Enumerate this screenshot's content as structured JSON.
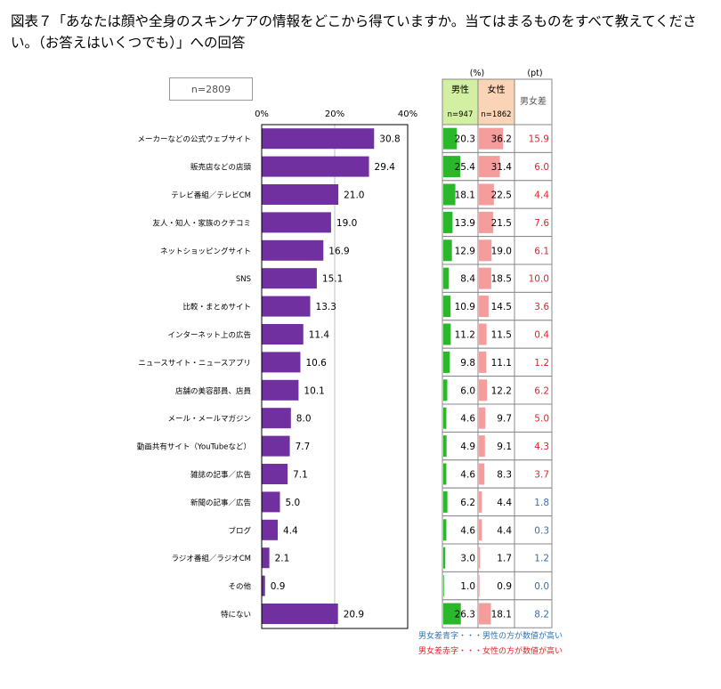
{
  "title": "図表７「あなたは顔や全身のスキンケアの情報をどこから得ていますか。当てはまるものをすべて教えてください。（お答えはいくつでも）」への回答",
  "sample_label": "n=2809",
  "table_headers": {
    "pct_unit": "(%)",
    "pt_unit": "(pt)",
    "male_label": "男性",
    "male_n": "n=947",
    "female_label": "女性",
    "female_n": "n=1862",
    "diff_label": "男女差"
  },
  "legend": {
    "blue_text": "男女差青字・・・男性の方が数値が高い",
    "red_text": "男女差赤字・・・女性の方が数値が高い"
  },
  "colors": {
    "bar": "#7030a0",
    "male_bar": "#2ab82a",
    "female_bar": "#f59c9c",
    "male_header_bg": "#d3f0a2",
    "female_header_bg": "#fbd3b6",
    "diff_red": "#e0242a",
    "diff_blue": "#2e74b5"
  },
  "chart_data": {
    "type": "bar",
    "orientation": "horizontal",
    "x_ticks": [
      "0%",
      "20%",
      "40%"
    ],
    "xlim": [
      0,
      40
    ],
    "categories": [
      "メーカーなどの公式ウェブサイト",
      "販売店などの店頭",
      "テレビ番組／テレビCM",
      "友人・知人・家族のクチコミ",
      "ネットショッピングサイト",
      "SNS",
      "比較・まとめサイト",
      "インターネット上の広告",
      "ニュースサイト・ニュースアプリ",
      "店舗の美容部員、店員",
      "メール・メールマガジン",
      "動画共有サイト（YouTubeなど）",
      "雑誌の記事／広告",
      "新聞の記事／広告",
      "ブログ",
      "ラジオ番組／ラジオCM",
      "その他",
      "特にない"
    ],
    "values": [
      30.8,
      29.4,
      21.0,
      19.0,
      16.9,
      15.1,
      13.3,
      11.4,
      10.6,
      10.1,
      8.0,
      7.7,
      7.1,
      5.0,
      4.4,
      2.1,
      0.9,
      20.9
    ],
    "value_labels": [
      "30.8",
      "29.4",
      "21.0",
      "19.0",
      "16.9",
      "15.1",
      "13.3",
      "11.4",
      "10.6",
      "10.1",
      "8.0",
      "7.7",
      "7.1",
      "5.0",
      "4.4",
      "2.1",
      "0.9",
      "20.9"
    ],
    "male": [
      20.3,
      25.4,
      18.1,
      13.9,
      12.9,
      8.4,
      10.9,
      11.2,
      9.8,
      6.0,
      4.6,
      4.9,
      4.6,
      6.2,
      4.6,
      3.0,
      1.0,
      26.3
    ],
    "male_labels": [
      "20.3",
      "25.4",
      "18.1",
      "13.9",
      "12.9",
      "8.4",
      "10.9",
      "11.2",
      "9.8",
      "6.0",
      "4.6",
      "4.9",
      "4.6",
      "6.2",
      "4.6",
      "3.0",
      "1.0",
      "26.3"
    ],
    "female": [
      36.2,
      31.4,
      22.5,
      21.5,
      19.0,
      18.5,
      14.5,
      11.5,
      11.1,
      12.2,
      9.7,
      9.1,
      8.3,
      4.4,
      4.4,
      1.7,
      0.9,
      18.1
    ],
    "female_labels": [
      "36.2",
      "31.4",
      "22.5",
      "21.5",
      "19.0",
      "18.5",
      "14.5",
      "11.5",
      "11.1",
      "12.2",
      "9.7",
      "9.1",
      "8.3",
      "4.4",
      "4.4",
      "1.7",
      "0.9",
      "18.1"
    ],
    "diff_labels": [
      "15.9",
      "6.0",
      "4.4",
      "7.6",
      "6.1",
      "10.0",
      "3.6",
      "0.4",
      "1.2",
      "6.2",
      "5.0",
      "4.3",
      "3.7",
      "1.8",
      "0.3",
      "1.2",
      "0.0",
      "8.2"
    ],
    "diff_colors": [
      "red",
      "red",
      "red",
      "red",
      "red",
      "red",
      "red",
      "red",
      "red",
      "red",
      "red",
      "red",
      "red",
      "blue",
      "blue",
      "blue",
      "blue",
      "blue"
    ]
  }
}
